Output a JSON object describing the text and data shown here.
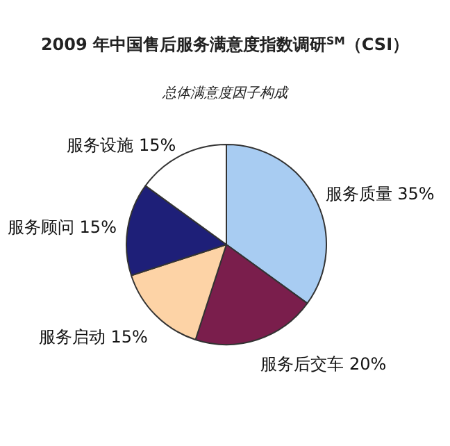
{
  "chart_data": {
    "type": "pie",
    "title": "2009 年中国售后服务满意度指数调研$^{SM}$（CSI）",
    "subtitle": "总体满意度因子构成",
    "categories": [
      "服务质量",
      "服务后交车",
      "服务启动",
      "服务顾问",
      "服务设施"
    ],
    "values": [
      35,
      20,
      15,
      15,
      15
    ],
    "value_labels": [
      "35%",
      "20%",
      "15%",
      "15%",
      "15%"
    ],
    "colors": [
      "#a8ccf2",
      "#7a1e4c",
      "#fdd3a6",
      "#1e1f78",
      "#ffffff"
    ]
  }
}
